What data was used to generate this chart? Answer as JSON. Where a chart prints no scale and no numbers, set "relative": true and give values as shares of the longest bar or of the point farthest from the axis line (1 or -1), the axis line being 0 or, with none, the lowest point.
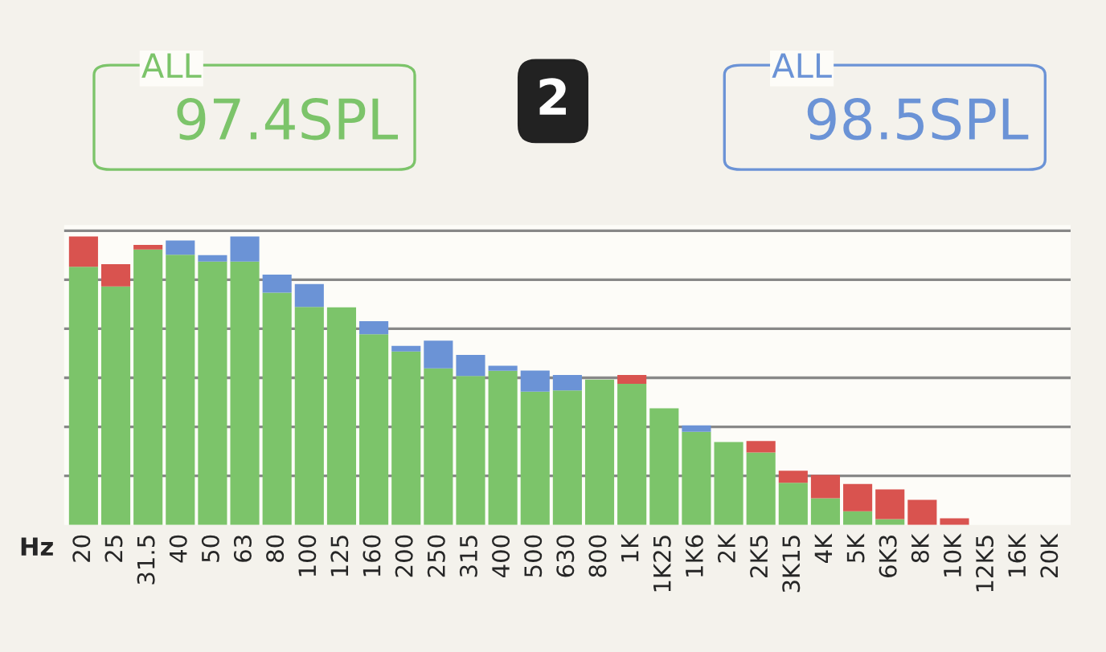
{
  "chart_data": {
    "type": "bar",
    "stacked": true,
    "relative": true,
    "grid": "y",
    "tick_labels": "x",
    "xlabel": "Hz",
    "categories": [
      "20",
      "25",
      "31.5",
      "40",
      "50",
      "63",
      "80",
      "100",
      "125",
      "160",
      "200",
      "250",
      "315",
      "400",
      "500",
      "630",
      "800",
      "1K",
      "1K25",
      "1K6",
      "2K",
      "2K5",
      "3K15",
      "4K",
      "5K",
      "6K3",
      "8K",
      "10K",
      "12K5",
      "16K",
      "20K"
    ],
    "series": [
      {
        "color": "#7cc46a",
        "values": [
          0.895,
          0.827,
          0.955,
          0.937,
          0.913,
          0.913,
          0.805,
          0.756,
          0.754,
          0.661,
          0.601,
          0.543,
          0.516,
          0.534,
          0.462,
          0.466,
          0.504,
          0.489,
          0.404,
          0.323,
          0.287,
          0.251,
          0.146,
          0.092,
          0.047,
          0.02,
          0,
          0,
          0,
          0,
          0
        ]
      },
      {
        "color": "#d9534f",
        "values": [
          0.105,
          0.077,
          0.016,
          null,
          null,
          null,
          null,
          null,
          null,
          null,
          null,
          null,
          null,
          null,
          null,
          null,
          null,
          0.031,
          null,
          null,
          null,
          0.04,
          0.042,
          0.081,
          0.095,
          0.103,
          0.087,
          0.023,
          null,
          null,
          null
        ]
      },
      {
        "color": "#6b93d6",
        "values": [
          null,
          null,
          null,
          0.049,
          0.022,
          0.087,
          0.063,
          0.079,
          null,
          0.045,
          0.02,
          0.096,
          0.073,
          0.018,
          0.073,
          0.054,
          null,
          null,
          null,
          0.022,
          null,
          null,
          null,
          null,
          null,
          null,
          null,
          null,
          null,
          null,
          null
        ]
      }
    ],
    "annotations": [
      "ALL",
      "97.4SPL",
      "2",
      "ALL",
      "98.5SPL"
    ]
  }
}
